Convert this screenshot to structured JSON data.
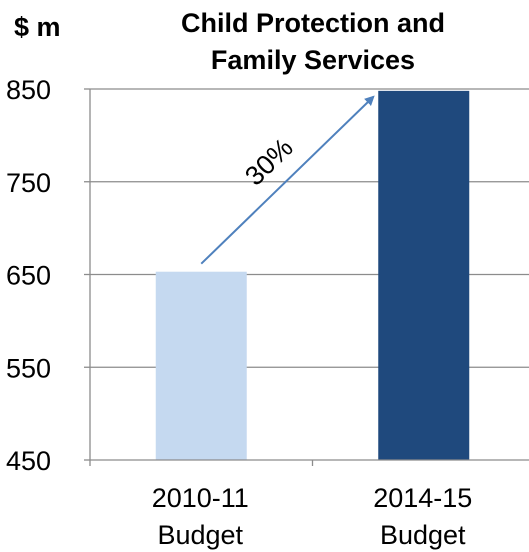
{
  "chart_data": {
    "type": "bar",
    "title_lines": [
      "Child Protection and",
      "Family Services"
    ],
    "unit_label": "$ m",
    "categories": [
      {
        "lines": [
          "2010-11",
          "Budget"
        ]
      },
      {
        "lines": [
          "2014-15",
          "Budget"
        ]
      }
    ],
    "values": [
      653,
      848
    ],
    "bar_colors": [
      "#c5d9f0",
      "#1f497d"
    ],
    "ylim": [
      450,
      850
    ],
    "yticks": [
      450,
      550,
      650,
      750,
      850
    ],
    "grid": true,
    "annotation": {
      "text": "30%",
      "from_category": 0,
      "to_category": 1,
      "arrow_color": "#4f81bd"
    }
  }
}
